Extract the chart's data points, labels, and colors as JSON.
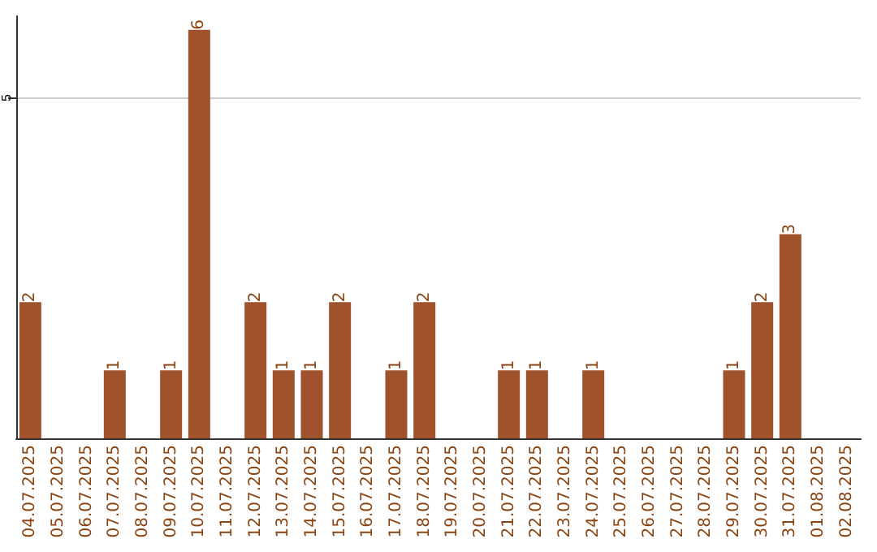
{
  "chart_data": {
    "type": "bar",
    "categories": [
      "04.07.2025",
      "05.07.2025",
      "06.07.2025",
      "07.07.2025",
      "08.07.2025",
      "09.07.2025",
      "10.07.2025",
      "11.07.2025",
      "12.07.2025",
      "13.07.2025",
      "14.07.2025",
      "15.07.2025",
      "16.07.2025",
      "17.07.2025",
      "18.07.2025",
      "19.07.2025",
      "20.07.2025",
      "21.07.2025",
      "22.07.2025",
      "23.07.2025",
      "24.07.2025",
      "25.07.2025",
      "26.07.2025",
      "27.07.2025",
      "28.07.2025",
      "29.07.2025",
      "30.07.2025",
      "31.07.2025",
      "01.08.2025",
      "02.08.2025"
    ],
    "values": [
      2,
      0,
      0,
      1,
      0,
      1,
      6,
      0,
      2,
      1,
      1,
      2,
      0,
      1,
      2,
      0,
      0,
      1,
      1,
      0,
      1,
      0,
      0,
      0,
      0,
      1,
      2,
      3,
      0,
      0
    ],
    "value_labels": [
      "2",
      null,
      null,
      "1",
      null,
      "1",
      "6",
      null,
      "2",
      "1",
      "1",
      "2",
      null,
      "1",
      "2",
      null,
      null,
      "1",
      "1",
      null,
      "1",
      null,
      null,
      null,
      null,
      "1",
      "2",
      "3",
      null,
      null
    ],
    "color": "#a0522d",
    "ylim": [
      0,
      6.2
    ],
    "yticks": [
      5
    ],
    "grid": "y"
  }
}
